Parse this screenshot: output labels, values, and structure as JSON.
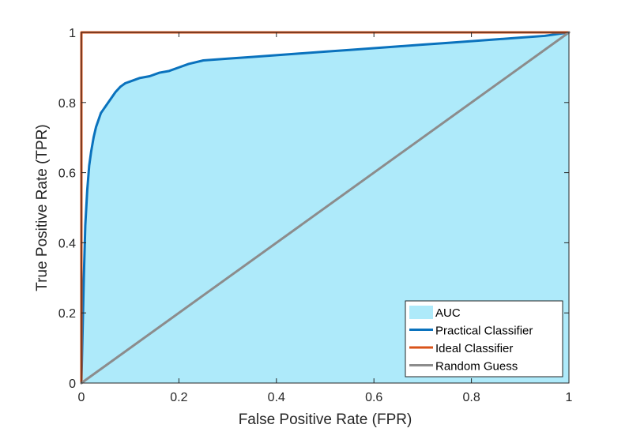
{
  "chart_data": {
    "type": "area",
    "xlabel": "False Positive Rate (FPR)",
    "ylabel": "True Positive Rate (TPR)",
    "xlim": [
      0,
      1
    ],
    "ylim": [
      0,
      1
    ],
    "x_ticks": [
      0,
      0.2,
      0.4,
      0.6,
      0.8,
      1
    ],
    "y_ticks": [
      0,
      0.2,
      0.4,
      0.6,
      0.8,
      1
    ],
    "x_tick_labels": [
      "0",
      "0.2",
      "0.4",
      "0.6",
      "0.8",
      "1"
    ],
    "y_tick_labels": [
      "0",
      "0.2",
      "0.4",
      "0.6",
      "0.8",
      "1"
    ],
    "grid": false,
    "legend_position": "bottom-right",
    "series": [
      {
        "name": "AUC",
        "kind": "area",
        "color": "#aeeafa",
        "x": [
          0,
          0.002,
          0.005,
          0.008,
          0.012,
          0.016,
          0.02,
          0.025,
          0.03,
          0.035,
          0.04,
          0.045,
          0.05,
          0.06,
          0.07,
          0.08,
          0.09,
          0.1,
          0.12,
          0.14,
          0.16,
          0.18,
          0.2,
          0.22,
          0.25,
          0.3,
          0.35,
          0.4,
          0.45,
          0.5,
          0.55,
          0.6,
          0.65,
          0.7,
          0.75,
          0.8,
          0.85,
          0.9,
          0.95,
          1
        ],
        "y": [
          0,
          0.12,
          0.3,
          0.45,
          0.55,
          0.62,
          0.66,
          0.7,
          0.73,
          0.75,
          0.77,
          0.78,
          0.79,
          0.81,
          0.83,
          0.845,
          0.855,
          0.86,
          0.87,
          0.875,
          0.885,
          0.89,
          0.9,
          0.91,
          0.92,
          0.925,
          0.93,
          0.935,
          0.94,
          0.945,
          0.95,
          0.955,
          0.96,
          0.965,
          0.97,
          0.975,
          0.98,
          0.985,
          0.99,
          1
        ]
      },
      {
        "name": "Practical Classifier",
        "kind": "line",
        "color": "#0a72bd",
        "x": [
          0,
          0.002,
          0.005,
          0.008,
          0.012,
          0.016,
          0.02,
          0.025,
          0.03,
          0.035,
          0.04,
          0.045,
          0.05,
          0.06,
          0.07,
          0.08,
          0.09,
          0.1,
          0.12,
          0.14,
          0.16,
          0.18,
          0.2,
          0.22,
          0.25,
          0.3,
          0.35,
          0.4,
          0.45,
          0.5,
          0.55,
          0.6,
          0.65,
          0.7,
          0.75,
          0.8,
          0.85,
          0.9,
          0.95,
          1
        ],
        "y": [
          0,
          0.12,
          0.3,
          0.45,
          0.55,
          0.62,
          0.66,
          0.7,
          0.73,
          0.75,
          0.77,
          0.78,
          0.79,
          0.81,
          0.83,
          0.845,
          0.855,
          0.86,
          0.87,
          0.875,
          0.885,
          0.89,
          0.9,
          0.91,
          0.92,
          0.925,
          0.93,
          0.935,
          0.94,
          0.945,
          0.95,
          0.955,
          0.96,
          0.965,
          0.97,
          0.975,
          0.98,
          0.985,
          0.99,
          1
        ]
      },
      {
        "name": "Ideal Classifier",
        "kind": "line",
        "color": "#d95319",
        "x": [
          0,
          0,
          1
        ],
        "y": [
          0,
          1,
          1
        ]
      },
      {
        "name": "Random Guess",
        "kind": "line",
        "color": "#8c8c8c",
        "x": [
          0,
          1
        ],
        "y": [
          0,
          1
        ]
      }
    ]
  }
}
